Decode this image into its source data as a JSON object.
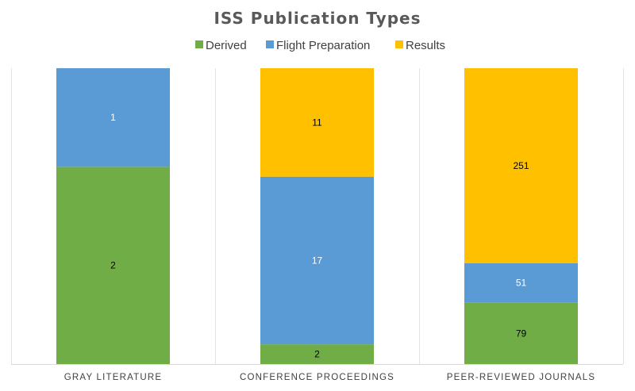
{
  "chart_data": {
    "type": "bar",
    "stacked": true,
    "title": "ISS Publication Types",
    "categories": [
      "GRAY LITERATURE",
      "CONFERENCE PROCEEDINGS",
      "PEER-REVIEWED JOURNALS"
    ],
    "series": [
      {
        "name": "Derived",
        "color": "#70AD47",
        "label_color": "#000000",
        "values": [
          2,
          2,
          79
        ]
      },
      {
        "name": "Flight Preparation",
        "color": "#5B9BD5",
        "label_color": "#ffffff",
        "values": [
          1,
          17,
          51
        ]
      },
      {
        "name": "Results",
        "color": "#FFC000",
        "label_color": "#000000",
        "values": [
          0,
          11,
          251
        ]
      }
    ],
    "normalized": true,
    "legend_position": "top",
    "grid": false
  }
}
